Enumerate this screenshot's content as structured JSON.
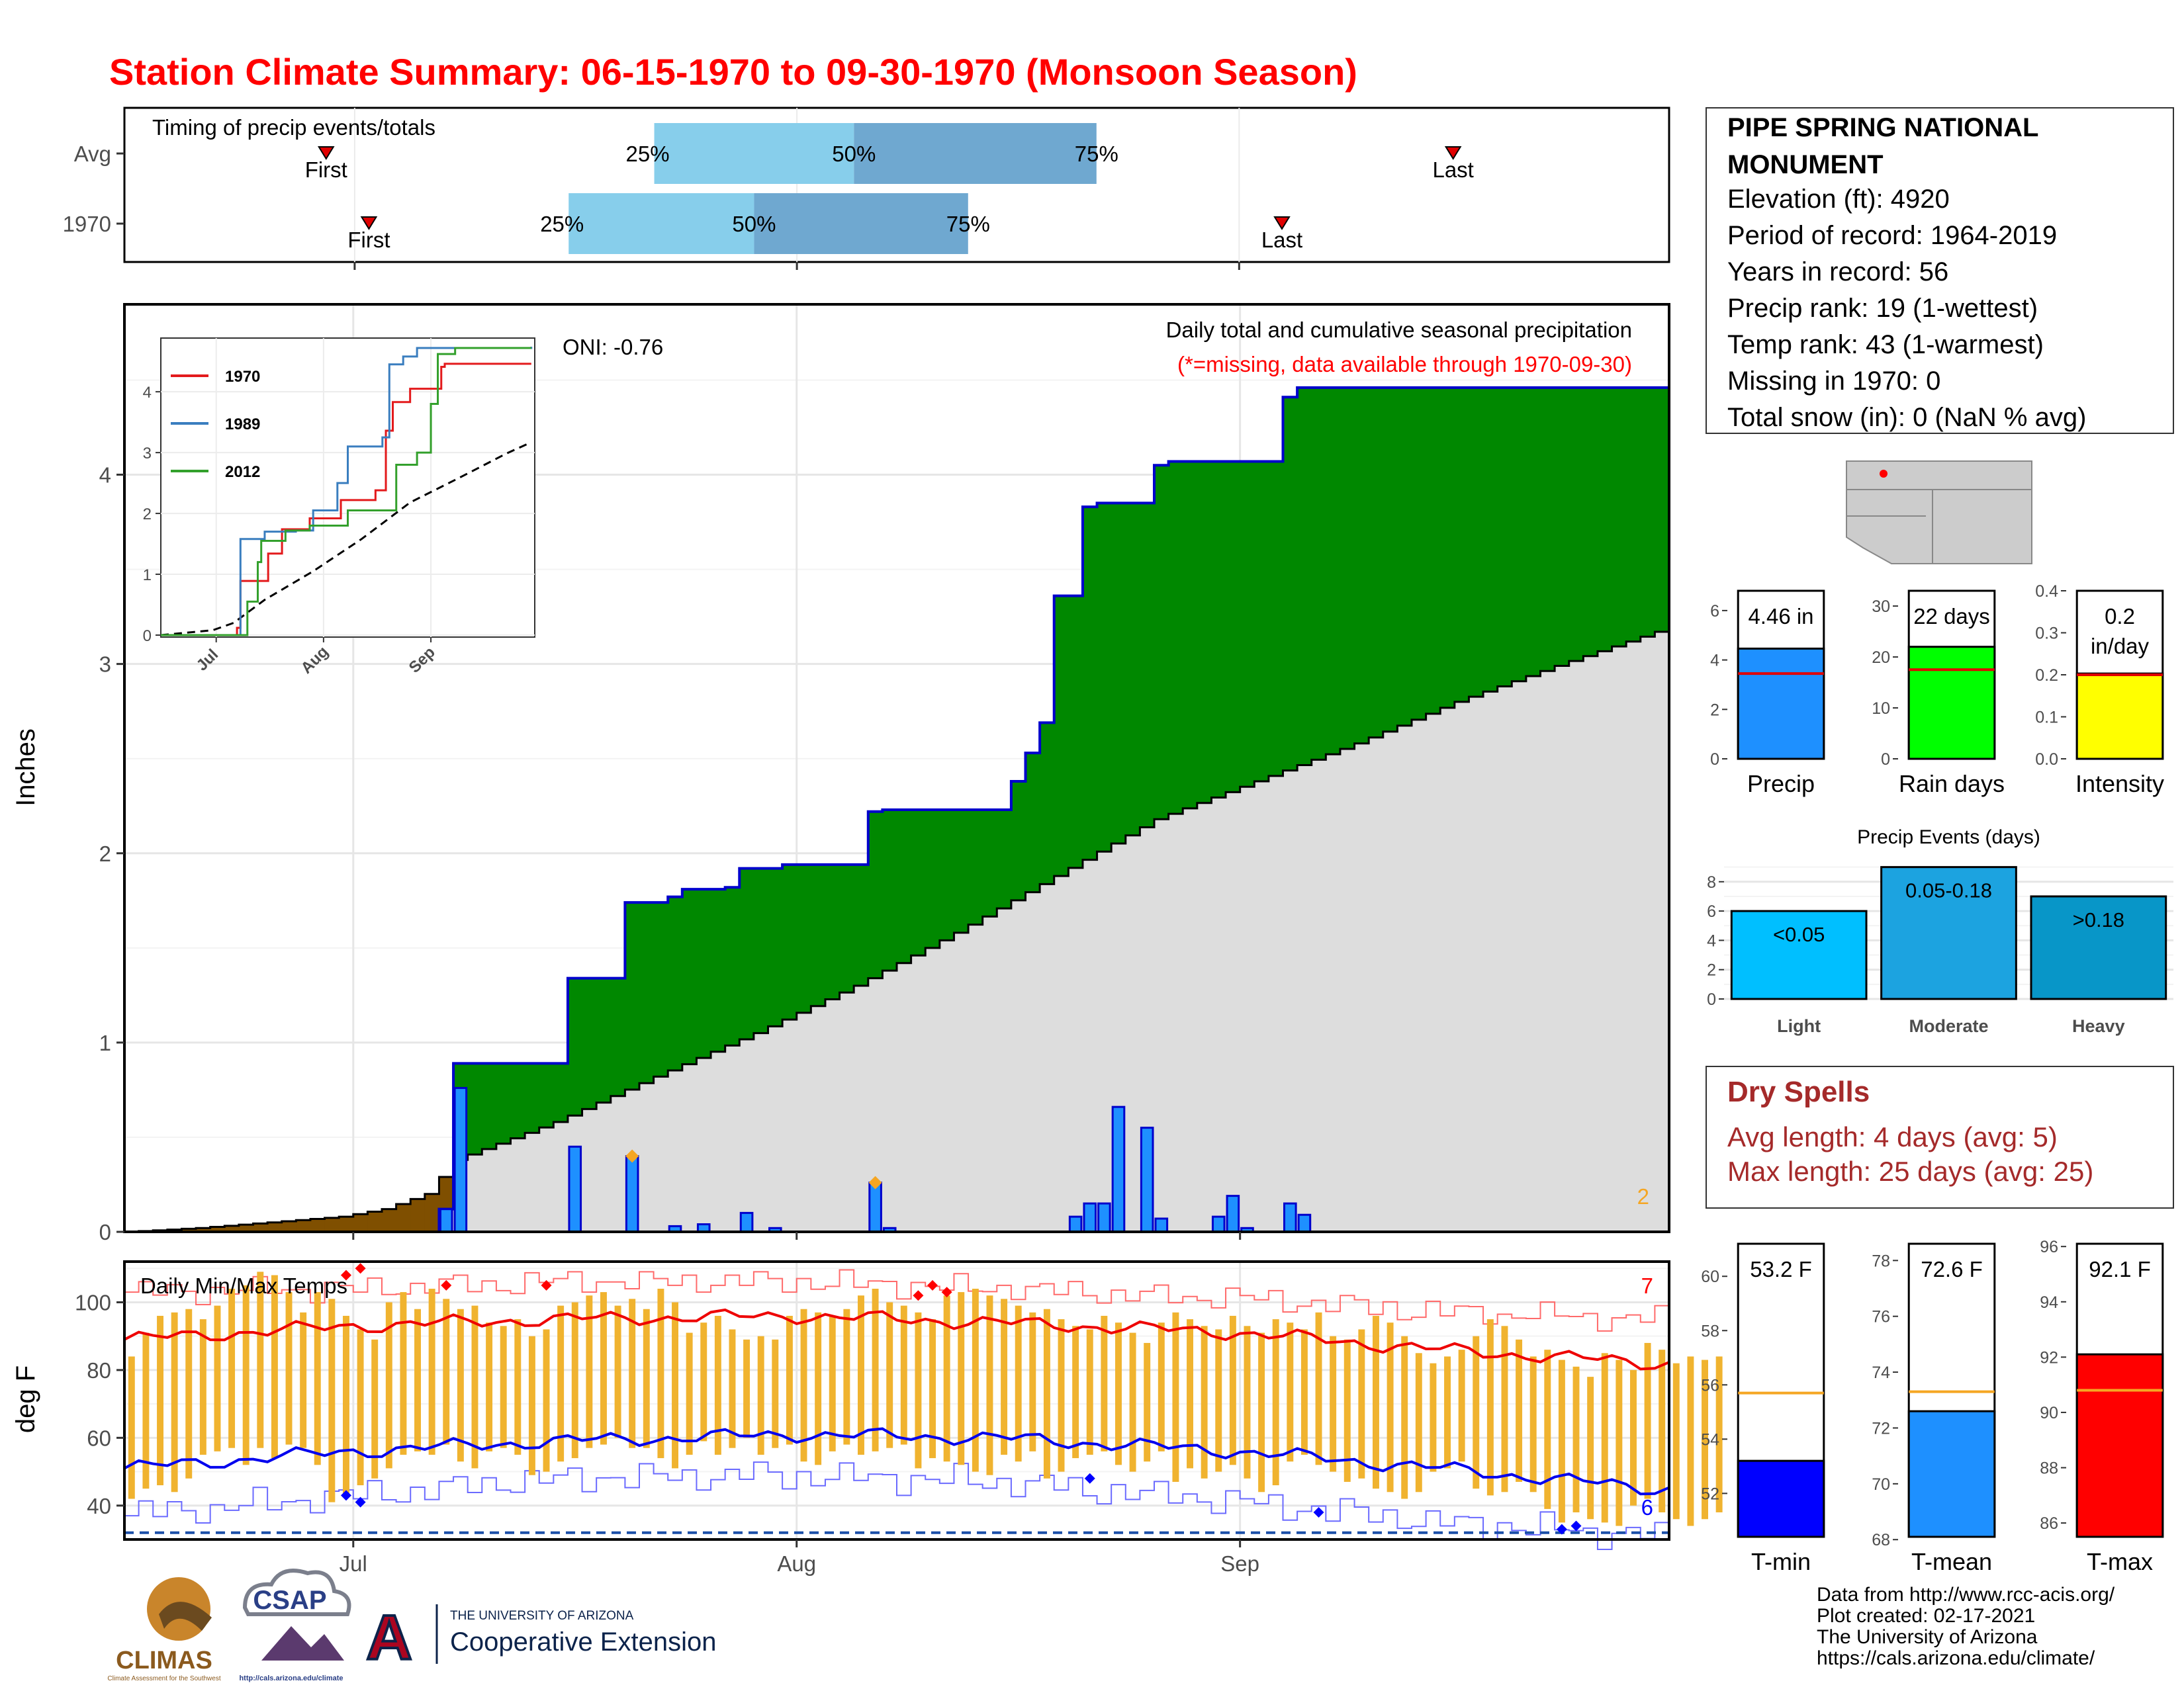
{
  "title": "Station Climate Summary: 06-15-1970 to 09-30-1970 (Monsoon Season)",
  "station": {
    "name": "PIPE SPRING NATIONAL MONUMENT",
    "lines": [
      "Elevation (ft): 4920",
      "Period of record: 1964-2019",
      "Years in record: 56",
      "Precip rank: 19 (1-wettest)",
      "Temp rank: 43 (1-warmest)",
      "Missing in 1970: 0",
      "Total snow (in): 0 (NaN % avg)"
    ]
  },
  "timing": {
    "title": "Timing of precip events/totals",
    "rows": [
      {
        "label": "Avg",
        "first": "06-29",
        "q25": "07-22",
        "q50": "08-05",
        "q75": "08-22",
        "last": "09-16"
      },
      {
        "label": "1970",
        "first": "07-02",
        "q25": "07-16",
        "q50": "07-29",
        "q75": "08-13",
        "last": "09-04"
      }
    ],
    "first_label": "First",
    "last_label": "Last",
    "q25_label": "25%",
    "q50_label": "50%",
    "q75_label": "75%"
  },
  "colors": {
    "title": "#ff0000",
    "green": "#008800",
    "brown": "#7f4f00",
    "gray": "#dddddd",
    "blue_bar": "#1e90ff",
    "red": "#ff0000",
    "orange": "#f5a623",
    "dryspell": "#a52a2a"
  },
  "chart_data": [
    {
      "type": "area",
      "name": "precip",
      "title": "Daily total and cumulative seasonal precipitation",
      "subtitle": "(*=missing, data available through 1970-09-30)",
      "oni": "ONI: -0.76",
      "ylabel": "Inches",
      "ylim": [
        0,
        4.9
      ],
      "yticks": [
        0,
        1,
        2,
        3,
        4
      ],
      "x_axis": {
        "start": "06-15",
        "end": "09-30",
        "ticks": [
          {
            "label": "Jul",
            "date": "07-01"
          },
          {
            "label": "Aug",
            "date": "08-01"
          },
          {
            "label": "Sep",
            "date": "09-01"
          }
        ]
      },
      "count_label": "2",
      "cumulative_1970": [
        [
          "06-15",
          0
        ],
        [
          "07-06",
          0
        ],
        [
          "07-07",
          0.12
        ],
        [
          "07-08",
          0.89
        ],
        [
          "07-15",
          0.89
        ],
        [
          "07-16",
          1.34
        ],
        [
          "07-19",
          1.34
        ],
        [
          "07-20",
          1.74
        ],
        [
          "07-22",
          1.74
        ],
        [
          "07-23",
          1.77
        ],
        [
          "07-24",
          1.81
        ],
        [
          "07-27",
          1.82
        ],
        [
          "07-28",
          1.92
        ],
        [
          "07-30",
          1.92
        ],
        [
          "07-31",
          1.94
        ],
        [
          "08-05",
          1.94
        ],
        [
          "08-06",
          2.22
        ],
        [
          "08-07",
          2.23
        ],
        [
          "08-15",
          2.23
        ],
        [
          "08-16",
          2.38
        ],
        [
          "08-17",
          2.53
        ],
        [
          "08-18",
          2.69
        ],
        [
          "08-19",
          3.36
        ],
        [
          "08-20",
          3.36
        ],
        [
          "08-21",
          3.83
        ],
        [
          "08-22",
          3.85
        ],
        [
          "08-25",
          3.85
        ],
        [
          "08-26",
          4.05
        ],
        [
          "08-27",
          4.07
        ],
        [
          "09-03",
          4.07
        ],
        [
          "09-04",
          4.41
        ],
        [
          "09-05",
          4.46
        ],
        [
          "09-30",
          4.46
        ]
      ],
      "average_cumulative": [
        [
          "06-15",
          0
        ],
        [
          "06-20",
          0.02
        ],
        [
          "06-25",
          0.05
        ],
        [
          "06-30",
          0.08
        ],
        [
          "07-03",
          0.12
        ],
        [
          "07-06",
          0.2
        ],
        [
          "07-08",
          0.38
        ],
        [
          "07-15",
          0.58
        ],
        [
          "07-22",
          0.82
        ],
        [
          "07-29",
          1.05
        ],
        [
          "08-05",
          1.3
        ],
        [
          "08-12",
          1.58
        ],
        [
          "08-19",
          1.88
        ],
        [
          "08-26",
          2.18
        ],
        [
          "09-02",
          2.38
        ],
        [
          "09-09",
          2.58
        ],
        [
          "09-16",
          2.8
        ],
        [
          "09-23",
          2.99
        ],
        [
          "09-30",
          3.17
        ]
      ],
      "daily_1970": [
        [
          "07-07",
          0.12
        ],
        [
          "07-08",
          0.76
        ],
        [
          "07-16",
          0.45
        ],
        [
          "07-20",
          0.4
        ],
        [
          "07-23",
          0.03
        ],
        [
          "07-25",
          0.04
        ],
        [
          "07-28",
          0.1
        ],
        [
          "07-30",
          0.02
        ],
        [
          "08-06",
          0.26
        ],
        [
          "08-07",
          0.02
        ],
        [
          "08-20",
          0.08
        ],
        [
          "08-21",
          0.15
        ],
        [
          "08-22",
          0.15
        ],
        [
          "08-23",
          0.66
        ],
        [
          "08-25",
          0.55
        ],
        [
          "08-26",
          0.07
        ],
        [
          "08-30",
          0.08
        ],
        [
          "08-31",
          0.19
        ],
        [
          "09-01",
          0.02
        ],
        [
          "09-04",
          0.15
        ],
        [
          "09-05",
          0.09
        ]
      ],
      "record_markers": [
        [
          "07-20",
          0.4
        ],
        [
          "08-06",
          0.26
        ]
      ]
    },
    {
      "type": "line",
      "name": "inset",
      "xticks": [
        "Jul",
        "Aug",
        "Sep"
      ],
      "yticks": [
        0,
        1,
        2,
        3,
        4
      ],
      "series": [
        {
          "name": "1970",
          "color": "#e31a1c",
          "values": [
            [
              "06-15",
              0
            ],
            [
              "07-07",
              0.12
            ],
            [
              "07-08",
              0.89
            ],
            [
              "07-16",
              1.34
            ],
            [
              "07-20",
              1.74
            ],
            [
              "07-28",
              1.92
            ],
            [
              "08-06",
              2.22
            ],
            [
              "08-16",
              2.38
            ],
            [
              "08-19",
              3.36
            ],
            [
              "08-21",
              3.83
            ],
            [
              "08-26",
              4.05
            ],
            [
              "09-04",
              4.41
            ],
            [
              "09-05",
              4.46
            ],
            [
              "09-30",
              4.46
            ]
          ]
        },
        {
          "name": "1989",
          "color": "#3a7ebf",
          "values": [
            [
              "06-15",
              0
            ],
            [
              "07-08",
              1.58
            ],
            [
              "07-14",
              1.58
            ],
            [
              "07-15",
              1.7
            ],
            [
              "07-24",
              1.72
            ],
            [
              "07-29",
              2.05
            ],
            [
              "08-05",
              2.5
            ],
            [
              "08-08",
              3.1
            ],
            [
              "08-18",
              3.25
            ],
            [
              "08-20",
              4.45
            ],
            [
              "08-24",
              4.58
            ],
            [
              "08-28",
              4.72
            ],
            [
              "09-30",
              4.74
            ]
          ]
        },
        {
          "name": "2012",
          "color": "#33a02c",
          "values": [
            [
              "06-15",
              0
            ],
            [
              "07-10",
              0.55
            ],
            [
              "07-13",
              1.2
            ],
            [
              "07-14",
              1.55
            ],
            [
              "07-21",
              1.72
            ],
            [
              "07-28",
              1.8
            ],
            [
              "08-08",
              2.05
            ],
            [
              "08-22",
              2.8
            ],
            [
              "08-28",
              3.0
            ],
            [
              "09-01",
              3.8
            ],
            [
              "09-03",
              4.62
            ],
            [
              "09-08",
              4.72
            ],
            [
              "09-30",
              4.72
            ]
          ]
        }
      ],
      "average": [
        [
          "06-15",
          0
        ],
        [
          "06-30",
          0.08
        ],
        [
          "07-06",
          0.2
        ],
        [
          "07-15",
          0.58
        ],
        [
          "07-29",
          1.05
        ],
        [
          "08-12",
          1.58
        ],
        [
          "08-26",
          2.18
        ],
        [
          "09-09",
          2.58
        ],
        [
          "09-23",
          2.99
        ],
        [
          "09-30",
          3.17
        ]
      ]
    },
    {
      "type": "bar",
      "name": "temps",
      "title": "Daily Min/Max Temps",
      "ylabel": "deg F",
      "ylim": [
        30,
        112
      ],
      "yticks": [
        40,
        60,
        80,
        100
      ],
      "x_axis": {
        "start": "06-15",
        "end": "09-30",
        "ticks": [
          {
            "label": "Jul",
            "date": "07-01"
          },
          {
            "label": "Aug",
            "date": "08-01"
          },
          {
            "label": "Sep",
            "date": "09-01"
          }
        ]
      },
      "max_count_label": "7",
      "min_count_label": "6",
      "freeze_line": 32,
      "avg_max": [
        [
          "06-15",
          89
        ],
        [
          "07-01",
          93
        ],
        [
          "07-15",
          95
        ],
        [
          "08-01",
          96
        ],
        [
          "08-15",
          94
        ],
        [
          "09-01",
          91
        ],
        [
          "09-15",
          86
        ],
        [
          "09-30",
          82
        ]
      ],
      "avg_min": [
        [
          "06-15",
          51
        ],
        [
          "07-01",
          56
        ],
        [
          "07-15",
          59
        ],
        [
          "08-01",
          61
        ],
        [
          "08-15",
          60
        ],
        [
          "09-01",
          56
        ],
        [
          "09-15",
          51
        ],
        [
          "09-30",
          45
        ]
      ],
      "record_max": [
        [
          "06-15",
          103
        ],
        [
          "07-01",
          104
        ],
        [
          "07-15",
          106
        ],
        [
          "08-01",
          106
        ],
        [
          "08-15",
          104
        ],
        [
          "09-01",
          101
        ],
        [
          "09-15",
          97
        ],
        [
          "09-30",
          95
        ]
      ],
      "record_min": [
        [
          "06-15",
          37
        ],
        [
          "07-01",
          43
        ],
        [
          "07-15",
          48
        ],
        [
          "08-01",
          49
        ],
        [
          "08-15",
          47
        ],
        [
          "09-01",
          41
        ],
        [
          "09-15",
          35
        ],
        [
          "09-30",
          31
        ]
      ],
      "daily_max": [
        84,
        91,
        96,
        97,
        98,
        95,
        99,
        104,
        105,
        109,
        108,
        103,
        97,
        103,
        101,
        96,
        92,
        89,
        100,
        103,
        98,
        104,
        101,
        98,
        99,
        94,
        93,
        95,
        90,
        92,
        99,
        100,
        102,
        103,
        99,
        101,
        98,
        104,
        100,
        91,
        94,
        96,
        92,
        89,
        90,
        89,
        96,
        98,
        97,
        96,
        98,
        102,
        104,
        100,
        99,
        97,
        95,
        102,
        103,
        104,
        102,
        101,
        99,
        97,
        98,
        95,
        93,
        92,
        96,
        94,
        91,
        88,
        94,
        97,
        95,
        93,
        92,
        96,
        93,
        91,
        95,
        94,
        92,
        97,
        90,
        89,
        92,
        96,
        94,
        90,
        85,
        82,
        84,
        86,
        90,
        95,
        93,
        89,
        84,
        86,
        83,
        81,
        78,
        85,
        83,
        80,
        88,
        86,
        82,
        84,
        83,
        84,
        86,
        82
      ],
      "daily_min": [
        42,
        45,
        46,
        44,
        48,
        55,
        56,
        57,
        52,
        57,
        54,
        58,
        57,
        52,
        41,
        43,
        46,
        48,
        51,
        55,
        56,
        55,
        58,
        53,
        51,
        56,
        57,
        55,
        49,
        50,
        53,
        54,
        57,
        58,
        60,
        57,
        57,
        54,
        51,
        55,
        59,
        55,
        57,
        60,
        55,
        57,
        58,
        53,
        52,
        56,
        58,
        55,
        56,
        57,
        58,
        51,
        54,
        53,
        52,
        50,
        49,
        55,
        53,
        56,
        48,
        50,
        54,
        55,
        56,
        52,
        50,
        53,
        56,
        47,
        51,
        48,
        50,
        52,
        48,
        44,
        46,
        53,
        55,
        52,
        50,
        47,
        48,
        45,
        44,
        42,
        44,
        50,
        51,
        53,
        45,
        43,
        44,
        47,
        44,
        39,
        35,
        38,
        36,
        35,
        34,
        40,
        42,
        38,
        36,
        34,
        36,
        38,
        37,
        40
      ],
      "record_high_days": [
        [
          "06-30",
          108
        ],
        [
          "07-01",
          110
        ],
        [
          "07-07",
          105
        ],
        [
          "07-14",
          105
        ],
        [
          "08-09",
          102
        ],
        [
          "08-10",
          105
        ],
        [
          "08-11",
          103
        ]
      ],
      "record_low_days": [
        [
          "06-30",
          43
        ],
        [
          "07-01",
          41
        ],
        [
          "08-21",
          48
        ],
        [
          "09-06",
          38
        ],
        [
          "09-23",
          33
        ],
        [
          "09-24",
          34
        ]
      ]
    },
    {
      "type": "bar",
      "name": "precip_total",
      "xlabel": "Precip",
      "value_label": "4.46 in",
      "value": 4.46,
      "avg": 3.45,
      "ylim": [
        0,
        6.8
      ],
      "yticks": [
        0,
        2,
        4,
        6
      ],
      "color": "#1e90ff"
    },
    {
      "type": "bar",
      "name": "rain_days",
      "xlabel": "Rain days",
      "value_label": "22 days",
      "value": 22,
      "avg": 17.5,
      "ylim": [
        0,
        33
      ],
      "yticks": [
        0,
        10,
        20,
        30
      ],
      "color": "#00ff00"
    },
    {
      "type": "bar",
      "name": "intensity",
      "xlabel": "Intensity",
      "value_label": "0.2 in/day",
      "value": 0.203,
      "avg": 0.2,
      "ylim": [
        0,
        0.4
      ],
      "yticks": [
        "0.0",
        "0.1",
        "0.2",
        "0.3",
        "0.4"
      ],
      "color": "#ffff00"
    },
    {
      "type": "bar",
      "name": "precip_events",
      "title": "Precip Events (days)",
      "categories": [
        "Light",
        "Moderate",
        "Heavy"
      ],
      "value_labels": [
        "<0.05",
        "0.05-0.18",
        ">0.18"
      ],
      "values": [
        6,
        9,
        7
      ],
      "ylim": [
        0,
        9.3
      ],
      "yticks": [
        0,
        2,
        4,
        6,
        8
      ],
      "colors": [
        "#00bfff",
        "#1ca3e0",
        "#0896c8"
      ]
    },
    {
      "type": "bar",
      "name": "tmin",
      "xlabel": "T-min",
      "value_label": "53.2 F",
      "value": 53.2,
      "avg": 55.7,
      "ylim": [
        50.4,
        61.2
      ],
      "yticks": [
        52,
        54,
        56,
        58,
        60
      ],
      "color": "#0000ff"
    },
    {
      "type": "bar",
      "name": "tmean",
      "xlabel": "T-mean",
      "value_label": "72.6 F",
      "value": 72.6,
      "avg": 73.3,
      "ylim": [
        68.1,
        78.6
      ],
      "yticks": [
        68,
        70,
        72,
        74,
        76,
        78
      ],
      "color": "#1e90ff"
    },
    {
      "type": "bar",
      "name": "tmax",
      "xlabel": "T-max",
      "value_label": "92.1 F",
      "value": 92.1,
      "avg": 90.8,
      "ylim": [
        85.5,
        96.1
      ],
      "yticks": [
        86,
        88,
        90,
        92,
        94,
        96
      ],
      "color": "#ff0000"
    }
  ],
  "dry_spells": {
    "title": "Dry Spells",
    "avg_length": "Avg length: 4 days (avg: 5)",
    "max_length": "Max length: 25 days (avg: 25)"
  },
  "credits": [
    "Data from http://www.rcc-acis.org/",
    "Plot created: 02-17-2021",
    "The University of Arizona",
    "https://cals.arizona.edu/climate/"
  ],
  "logos": {
    "climas": "CLIMAS",
    "climas_sub": "Climate Assessment for the Southwest",
    "csap": "CSAP",
    "csap_url": "http://cals.arizona.edu/climate",
    "ua_letter": "A",
    "ua_line1": "THE UNIVERSITY OF ARIZONA",
    "ua_line2": "Cooperative Extension"
  }
}
